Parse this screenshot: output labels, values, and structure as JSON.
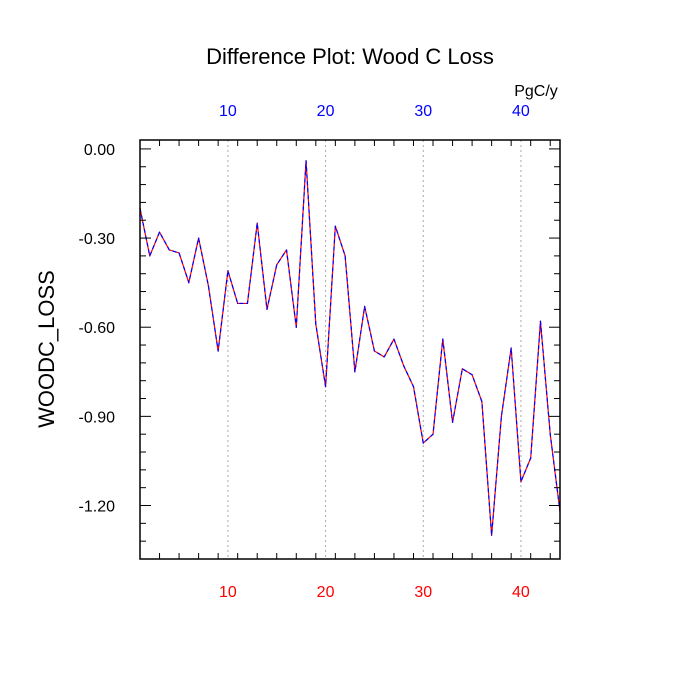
{
  "chart_data": {
    "type": "line",
    "title": "Difference Plot: Wood C Loss",
    "ylabel": "WOODC_LOSS",
    "xlabel": "",
    "units_label": "PgC/y",
    "xlim": [
      1,
      44
    ],
    "ylim": [
      -1.38,
      0.03
    ],
    "x_ticks": [
      10,
      20,
      30,
      40
    ],
    "x_tick_labels": [
      "10",
      "20",
      "30",
      "40"
    ],
    "y_ticks": [
      0.0,
      -0.3,
      -0.6,
      -0.9,
      -1.2
    ],
    "y_tick_labels": [
      "0.00",
      "-0.30",
      "-0.60",
      "-0.90",
      "-1.20"
    ],
    "grid": "vertical dotted at major x ticks",
    "colors": {
      "bottom_tick_labels": "#ff0000",
      "top_tick_labels": "#0000ff",
      "series_a": "#ff0000",
      "series_b": "#0000ff",
      "grid": "#aaaaaa"
    },
    "x": [
      1,
      2,
      3,
      4,
      5,
      6,
      7,
      8,
      9,
      10,
      11,
      12,
      13,
      14,
      15,
      16,
      17,
      18,
      19,
      20,
      21,
      22,
      23,
      24,
      25,
      26,
      27,
      28,
      29,
      30,
      31,
      32,
      33,
      34,
      35,
      36,
      37,
      38,
      39,
      40,
      41,
      42,
      43,
      44
    ],
    "series": [
      {
        "values": [
          -0.2,
          -0.36,
          -0.28,
          -0.34,
          -0.35,
          -0.45,
          -0.3,
          -0.46,
          -0.68,
          -0.41,
          -0.52,
          -0.52,
          -0.25,
          -0.54,
          -0.39,
          -0.34,
          -0.6,
          -0.04,
          -0.59,
          -0.8,
          -0.26,
          -0.36,
          -0.75,
          -0.53,
          -0.68,
          -0.7,
          -0.64,
          -0.73,
          -0.8,
          -0.99,
          -0.96,
          -0.64,
          -0.92,
          -0.74,
          -0.76,
          -0.85,
          -1.3,
          -0.9,
          -0.67,
          -1.12,
          -1.04,
          -0.58,
          -0.96,
          -1.22
        ]
      }
    ]
  }
}
